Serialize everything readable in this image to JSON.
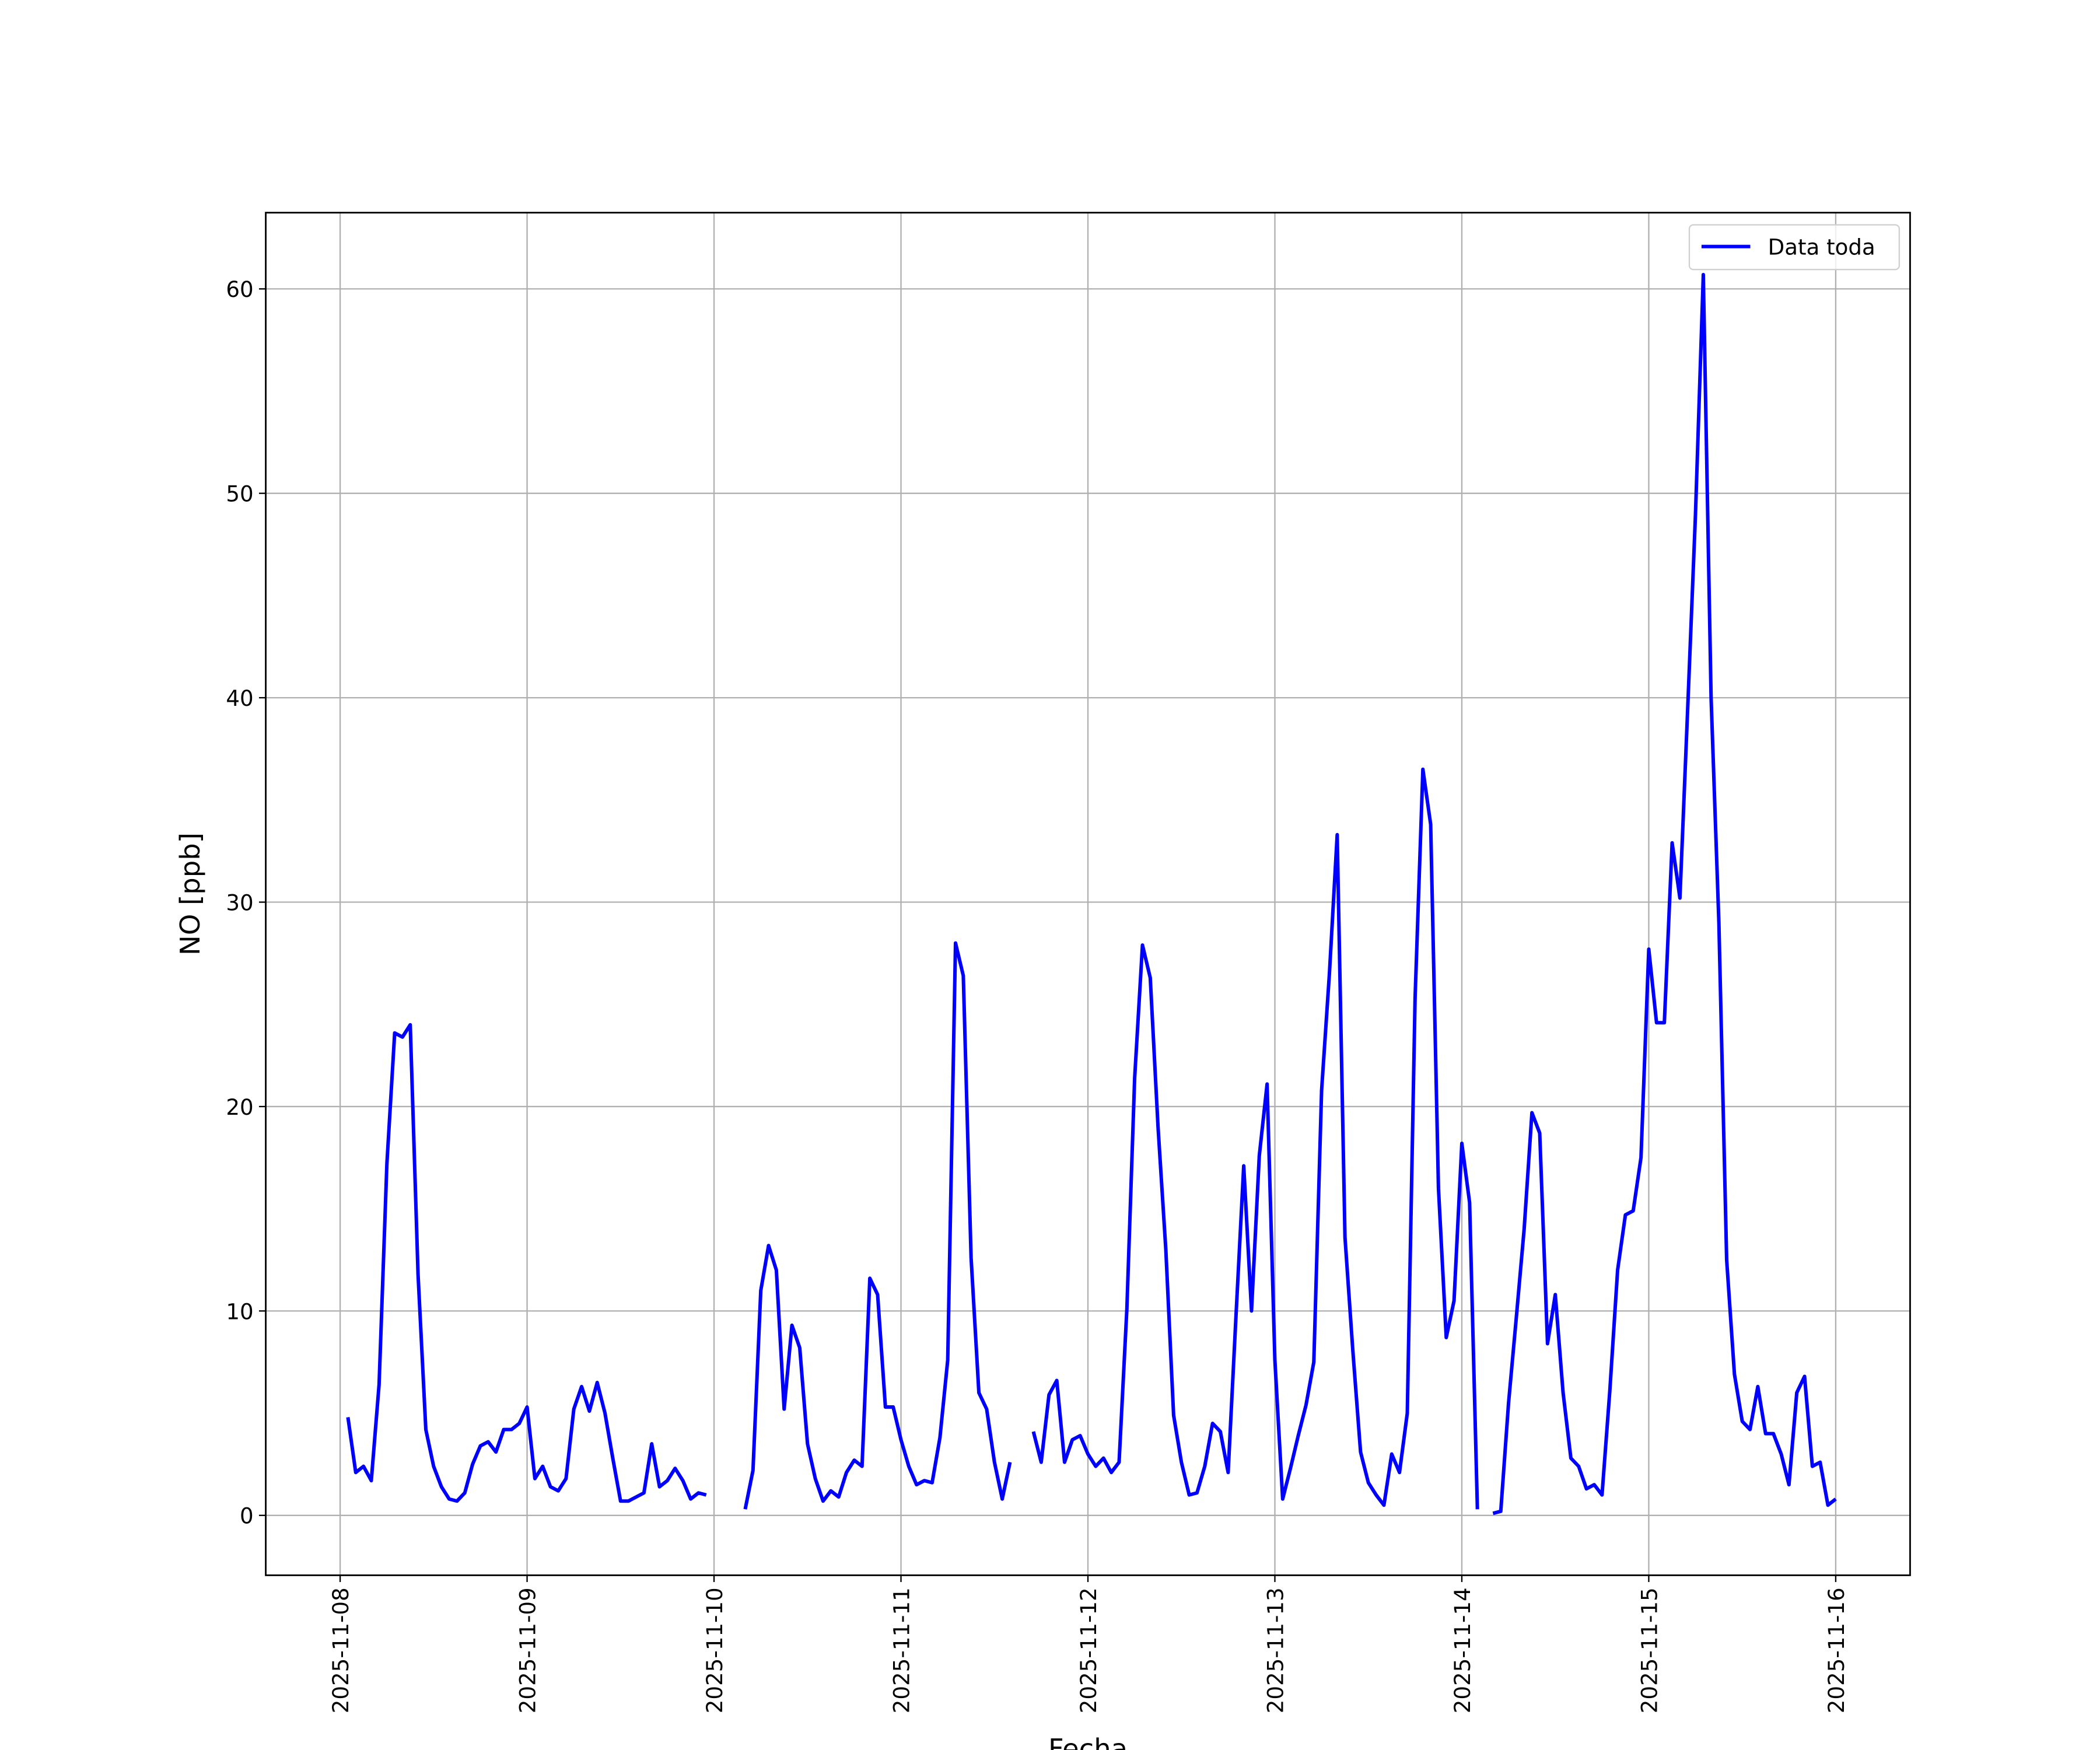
{
  "chart_data": {
    "type": "line",
    "xlabel": "Fecha",
    "ylabel": "NO [ppb]",
    "x": [
      "2025-11-08 01:00",
      "2025-11-08 02:00",
      "2025-11-08 03:00",
      "2025-11-08 04:00",
      "2025-11-08 05:00",
      "2025-11-08 06:00",
      "2025-11-08 07:00",
      "2025-11-08 08:00",
      "2025-11-08 09:00",
      "2025-11-08 10:00",
      "2025-11-08 11:00",
      "2025-11-08 12:00",
      "2025-11-08 13:00",
      "2025-11-08 14:00",
      "2025-11-08 15:00",
      "2025-11-08 16:00",
      "2025-11-08 17:00",
      "2025-11-08 18:00",
      "2025-11-08 19:00",
      "2025-11-08 20:00",
      "2025-11-08 21:00",
      "2025-11-08 22:00",
      "2025-11-08 23:00",
      "2025-11-09 00:00",
      "2025-11-09 01:00",
      "2025-11-09 02:00",
      "2025-11-09 03:00",
      "2025-11-09 04:00",
      "2025-11-09 05:00",
      "2025-11-09 06:00",
      "2025-11-09 07:00",
      "2025-11-09 08:00",
      "2025-11-09 09:00",
      "2025-11-09 10:00",
      "2025-11-09 11:00",
      "2025-11-09 12:00",
      "2025-11-09 13:00",
      "2025-11-09 14:00",
      "2025-11-09 15:00",
      "2025-11-09 16:00",
      "2025-11-09 17:00",
      "2025-11-09 18:00",
      "2025-11-09 19:00",
      "2025-11-09 20:00",
      "2025-11-09 21:00",
      "2025-11-09 22:00",
      "2025-11-09 23:00",
      "2025-11-10 00:00",
      "2025-11-10 01:00",
      "2025-11-10 02:00",
      "2025-11-10 03:00",
      "2025-11-10 04:00",
      "2025-11-10 05:00",
      "2025-11-10 06:00",
      "2025-11-10 07:00",
      "2025-11-10 08:00",
      "2025-11-10 09:00",
      "2025-11-10 10:00",
      "2025-11-10 11:00",
      "2025-11-10 12:00",
      "2025-11-10 13:00",
      "2025-11-10 14:00",
      "2025-11-10 15:00",
      "2025-11-10 16:00",
      "2025-11-10 17:00",
      "2025-11-10 18:00",
      "2025-11-10 19:00",
      "2025-11-10 20:00",
      "2025-11-10 21:00",
      "2025-11-10 22:00",
      "2025-11-10 23:00",
      "2025-11-11 00:00",
      "2025-11-11 01:00",
      "2025-11-11 02:00",
      "2025-11-11 03:00",
      "2025-11-11 04:00",
      "2025-11-11 05:00",
      "2025-11-11 06:00",
      "2025-11-11 07:00",
      "2025-11-11 08:00",
      "2025-11-11 09:00",
      "2025-11-11 10:00",
      "2025-11-11 11:00",
      "2025-11-11 12:00",
      "2025-11-11 13:00",
      "2025-11-11 14:00",
      "2025-11-11 15:00",
      "2025-11-11 16:00",
      "2025-11-11 17:00",
      "2025-11-11 18:00",
      "2025-11-11 19:00",
      "2025-11-11 20:00",
      "2025-11-11 21:00",
      "2025-11-11 22:00",
      "2025-11-11 23:00",
      "2025-11-12 00:00",
      "2025-11-12 01:00",
      "2025-11-12 02:00",
      "2025-11-12 03:00",
      "2025-11-12 04:00",
      "2025-11-12 05:00",
      "2025-11-12 06:00",
      "2025-11-12 07:00",
      "2025-11-12 08:00",
      "2025-11-12 09:00",
      "2025-11-12 10:00",
      "2025-11-12 11:00",
      "2025-11-12 12:00",
      "2025-11-12 13:00",
      "2025-11-12 14:00",
      "2025-11-12 15:00",
      "2025-11-12 16:00",
      "2025-11-12 17:00",
      "2025-11-12 18:00",
      "2025-11-12 19:00",
      "2025-11-12 20:00",
      "2025-11-12 21:00",
      "2025-11-12 22:00",
      "2025-11-12 23:00",
      "2025-11-13 00:00",
      "2025-11-13 01:00",
      "2025-11-13 02:00",
      "2025-11-13 03:00",
      "2025-11-13 04:00",
      "2025-11-13 05:00",
      "2025-11-13 06:00",
      "2025-11-13 07:00",
      "2025-11-13 08:00",
      "2025-11-13 09:00",
      "2025-11-13 10:00",
      "2025-11-13 11:00",
      "2025-11-13 12:00",
      "2025-11-13 13:00",
      "2025-11-13 14:00",
      "2025-11-13 15:00",
      "2025-11-13 16:00",
      "2025-11-13 17:00",
      "2025-11-13 18:00",
      "2025-11-13 19:00",
      "2025-11-13 20:00",
      "2025-11-13 21:00",
      "2025-11-13 22:00",
      "2025-11-13 23:00",
      "2025-11-14 00:00",
      "2025-11-14 01:00",
      "2025-11-14 02:00",
      "2025-11-14 03:00",
      "2025-11-14 04:00",
      "2025-11-14 05:00",
      "2025-11-14 06:00",
      "2025-11-14 07:00",
      "2025-11-14 08:00",
      "2025-11-14 09:00",
      "2025-11-14 10:00",
      "2025-11-14 11:00",
      "2025-11-14 12:00",
      "2025-11-14 13:00",
      "2025-11-14 14:00",
      "2025-11-14 15:00",
      "2025-11-14 16:00",
      "2025-11-14 17:00",
      "2025-11-14 18:00",
      "2025-11-14 19:00",
      "2025-11-14 20:00",
      "2025-11-14 21:00",
      "2025-11-14 22:00",
      "2025-11-14 23:00",
      "2025-11-15 00:00",
      "2025-11-15 01:00",
      "2025-11-15 02:00",
      "2025-11-15 03:00",
      "2025-11-15 04:00",
      "2025-11-15 05:00",
      "2025-11-15 06:00",
      "2025-11-15 07:00",
      "2025-11-15 08:00",
      "2025-11-15 09:00",
      "2025-11-15 10:00",
      "2025-11-15 11:00",
      "2025-11-15 12:00",
      "2025-11-15 13:00",
      "2025-11-15 14:00",
      "2025-11-15 15:00",
      "2025-11-15 16:00",
      "2025-11-15 17:00",
      "2025-11-15 18:00",
      "2025-11-15 19:00",
      "2025-11-15 20:00",
      "2025-11-15 21:00",
      "2025-11-15 22:00",
      "2025-11-15 23:00",
      "2025-11-16 00:00"
    ],
    "series": [
      {
        "name": "Data toda",
        "color": "#0000ff",
        "values": [
          4.8,
          2.1,
          2.4,
          1.7,
          6.4,
          17.2,
          23.6,
          23.4,
          24.0,
          11.8,
          4.2,
          2.4,
          1.4,
          0.8,
          0.7,
          1.1,
          2.5,
          3.4,
          3.6,
          3.1,
          4.2,
          4.2,
          4.5,
          5.3,
          1.8,
          2.4,
          1.4,
          1.2,
          1.8,
          5.2,
          6.3,
          5.1,
          6.5,
          5.0,
          2.8,
          0.7,
          0.7,
          0.9,
          1.1,
          3.5,
          1.4,
          1.7,
          2.3,
          1.7,
          0.8,
          1.1,
          1.0,
          null,
          null,
          null,
          null,
          0.3,
          2.2,
          11.0,
          13.2,
          12.0,
          5.2,
          9.3,
          8.2,
          3.5,
          1.8,
          0.7,
          1.2,
          0.9,
          2.1,
          2.7,
          2.4,
          11.6,
          10.8,
          5.3,
          5.3,
          3.7,
          2.4,
          1.5,
          1.7,
          1.6,
          3.8,
          7.6,
          28.0,
          26.4,
          12.6,
          6.0,
          5.2,
          2.6,
          0.8,
          2.6,
          null,
          null,
          4.1,
          2.6,
          5.9,
          6.6,
          2.6,
          3.7,
          3.9,
          3.0,
          2.4,
          2.8,
          2.1,
          2.6,
          10.1,
          21.4,
          27.9,
          26.3,
          19.0,
          13.0,
          4.9,
          2.6,
          1.0,
          1.1,
          2.4,
          4.5,
          4.1,
          2.1,
          9.7,
          17.1,
          10.0,
          17.6,
          21.1,
          7.6,
          0.8,
          2.3,
          3.9,
          5.4,
          7.5,
          20.8,
          26.5,
          33.3,
          13.6,
          8.1,
          3.1,
          1.6,
          1.0,
          0.5,
          3.0,
          2.1,
          5.0,
          25.3,
          36.5,
          33.8,
          16.0,
          8.7,
          10.5,
          18.2,
          15.3,
          0.3,
          null,
          0.1,
          0.2,
          5.5,
          9.7,
          14.0,
          19.7,
          18.7,
          8.4,
          10.8,
          6.0,
          2.8,
          2.4,
          1.3,
          1.5,
          1.0,
          6.1,
          12.0,
          14.7,
          14.9,
          17.5,
          27.7,
          24.1,
          24.1,
          32.9,
          30.2,
          39.5,
          49.0,
          60.7,
          40.0,
          29.0,
          12.5,
          6.9,
          4.6,
          4.2,
          6.3,
          4.0,
          4.0,
          3.0,
          1.5,
          6.0,
          6.8,
          2.4,
          2.6,
          0.5,
          0.8
        ]
      }
    ],
    "xlim": [
      "2025-11-07 14:27",
      "2025-11-16 09:33"
    ],
    "xticks": [
      "2025-11-08",
      "2025-11-09",
      "2025-11-10",
      "2025-11-11",
      "2025-11-12",
      "2025-11-13",
      "2025-11-14",
      "2025-11-15",
      "2025-11-16"
    ],
    "ylim": [
      -2.93,
      63.73
    ],
    "yticks": [
      0,
      10,
      20,
      30,
      40,
      50,
      60
    ],
    "grid": true,
    "legend": "upper-right"
  }
}
